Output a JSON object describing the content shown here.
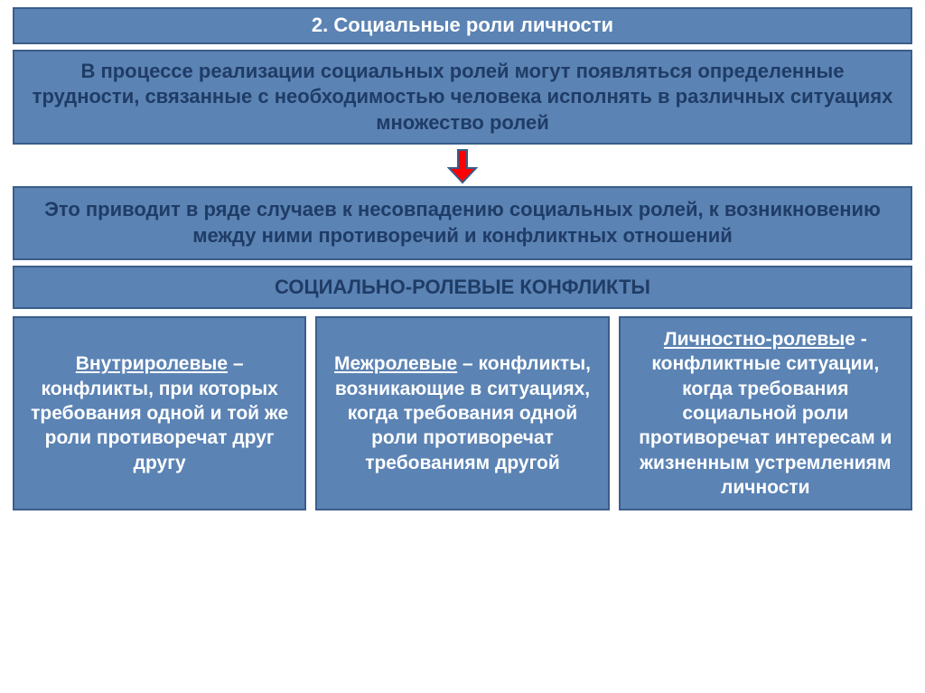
{
  "colors": {
    "box_bg": "#5b83b4",
    "box_border": "#3b5e8a",
    "title_border": "#3b5e8a",
    "text_white": "#ffffff",
    "text_navy": "#1f3c66",
    "arrow_fill": "#ff0000",
    "arrow_stroke": "#385d8a"
  },
  "layout": {
    "title_fontsize": 22,
    "body_fontsize": 22,
    "col_fontsize": 21,
    "line_height": 1.3,
    "border_width": 2,
    "col_gap": 10
  },
  "title": "2. Социальные роли личности",
  "intro": "В процессе реализации социальных ролей могут появляться определенные трудности, связанные с необходимостью человека исполнять в различных ситуациях множество ролей",
  "result": "Это приводит в ряде случаев к несовпадению социальных ролей, к возникновению между ними противоречий и конфликтных отношений",
  "subheader": "СОЦИАЛЬНО-РОЛЕВЫЕ КОНФЛИКТЫ",
  "columns": [
    {
      "term": "Внутриролевые",
      "rest": " – конфликты, при которых требования одной и той же роли противоречат друг другу"
    },
    {
      "term": "Межролевые",
      "rest": " – конфликты, возникающие в ситуациях, когда требования одной роли противоречат требованиям другой"
    },
    {
      "term": "Личностно-ролевы",
      "tail": "е",
      "rest": " - конфликтные ситуации, когда требования социальной роли противоречат интересам и жизненным устремлениям личности"
    }
  ],
  "arrow": {
    "width": 34,
    "height": 40
  }
}
